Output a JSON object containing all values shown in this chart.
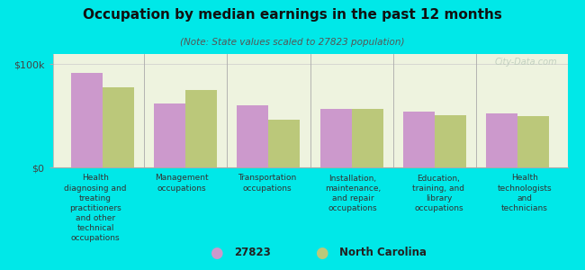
{
  "title": "Occupation by median earnings in the past 12 months",
  "subtitle": "(Note: State values scaled to 27823 population)",
  "background_color": "#00e8e8",
  "plot_bg_top": "#f5f8e8",
  "plot_bg_bottom": "#e8f0d0",
  "categories": [
    "Health\ndiagnosing and\ntreating\npractitioners\nand other\ntechnical\noccupations",
    "Management\noccupations",
    "Transportation\noccupations",
    "Installation,\nmaintenance,\nand repair\noccupations",
    "Education,\ntraining, and\nlibrary\noccupations",
    "Health\ntechnologists\nand\ntechnicians"
  ],
  "values_27823": [
    92000,
    62000,
    60000,
    57000,
    54000,
    52000
  ],
  "values_nc": [
    78000,
    75000,
    46000,
    57000,
    51000,
    50000
  ],
  "ylim": [
    0,
    110000
  ],
  "yticks": [
    0,
    100000
  ],
  "ytick_labels": [
    "$0",
    "$100k"
  ],
  "color_27823": "#cc99cc",
  "color_nc": "#bbc87a",
  "legend_labels": [
    "27823",
    "North Carolina"
  ],
  "bar_width": 0.38,
  "watermark": "City-Data.com"
}
